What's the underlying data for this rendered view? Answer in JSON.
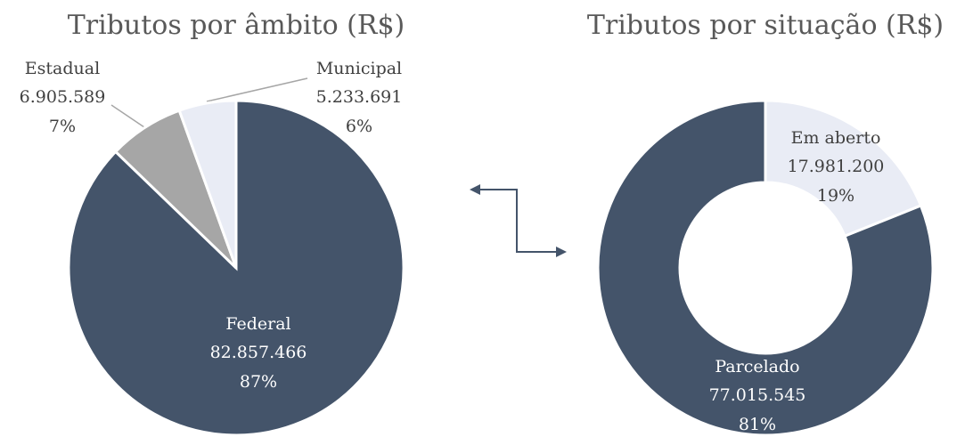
{
  "chart_data": [
    {
      "type": "pie",
      "title": "Tributos por âmbito (R$)",
      "categories": [
        "Federal",
        "Estadual",
        "Municipal"
      ],
      "values": [
        82857466,
        6905589,
        5233691
      ],
      "value_labels": [
        "82.857.466",
        "6.905.589",
        "5.233.691"
      ],
      "percent_labels": [
        "87%",
        "7%",
        "6%"
      ],
      "colors": [
        "#44546a",
        "#a6a6a6",
        "#e9ecf5"
      ]
    },
    {
      "type": "donut",
      "title": "Tributos por situação (R$)",
      "categories": [
        "Em aberto",
        "Parcelado"
      ],
      "values": [
        17981200,
        77015545
      ],
      "value_labels": [
        "17.981.200",
        "77.015.545"
      ],
      "percent_labels": [
        "19%",
        "81%"
      ],
      "colors": [
        "#e9ecf5",
        "#44546a"
      ]
    }
  ]
}
